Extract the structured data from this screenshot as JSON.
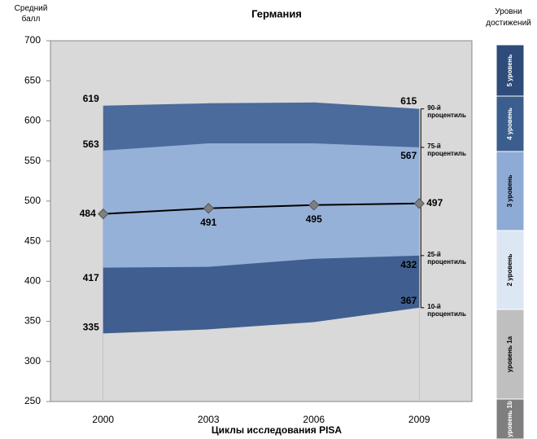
{
  "chart_data": {
    "type": "band",
    "title": "Германия",
    "y_label": "Средний балл",
    "x_label": "Циклы исследования PISA",
    "categories": [
      "2000",
      "2003",
      "2006",
      "2009"
    ],
    "ylim": [
      250,
      700
    ],
    "yticks": [
      250,
      300,
      350,
      400,
      450,
      500,
      550,
      600,
      650,
      700
    ],
    "grid": false,
    "series": [
      {
        "name": "10-й процентиль",
        "color": "#d9d9d9",
        "values": [
          335,
          340,
          349,
          367
        ]
      },
      {
        "name": "25-й процентиль",
        "color": "#405f90",
        "values": [
          417,
          418,
          428,
          432
        ]
      },
      {
        "name": "75-й процентиль",
        "color": "#96b1d8",
        "values": [
          563,
          572,
          572,
          567
        ]
      },
      {
        "name": "90-й процентиль",
        "color": "#4a6b9b",
        "values": [
          619,
          622,
          623,
          615
        ]
      },
      {
        "color": "#000000",
        "marker_color": "#7f7f7f",
        "values": [
          484,
          491,
          495,
          497
        ]
      }
    ],
    "levels": {
      "title": "Уровни достижений",
      "items": [
        {
          "name": "5 уровень",
          "color": "#2e4b79"
        },
        {
          "name": "4 уровень",
          "color": "#3b5e8e"
        },
        {
          "name": "3 уровень",
          "color": "#8eabd6"
        },
        {
          "name": "2 уровень",
          "color": "#dde6f3"
        },
        {
          "name": "уровень 1a",
          "color": "#bfbfbf"
        },
        {
          "name": "уровень 1b",
          "color": "#7f7f7f"
        }
      ]
    }
  }
}
